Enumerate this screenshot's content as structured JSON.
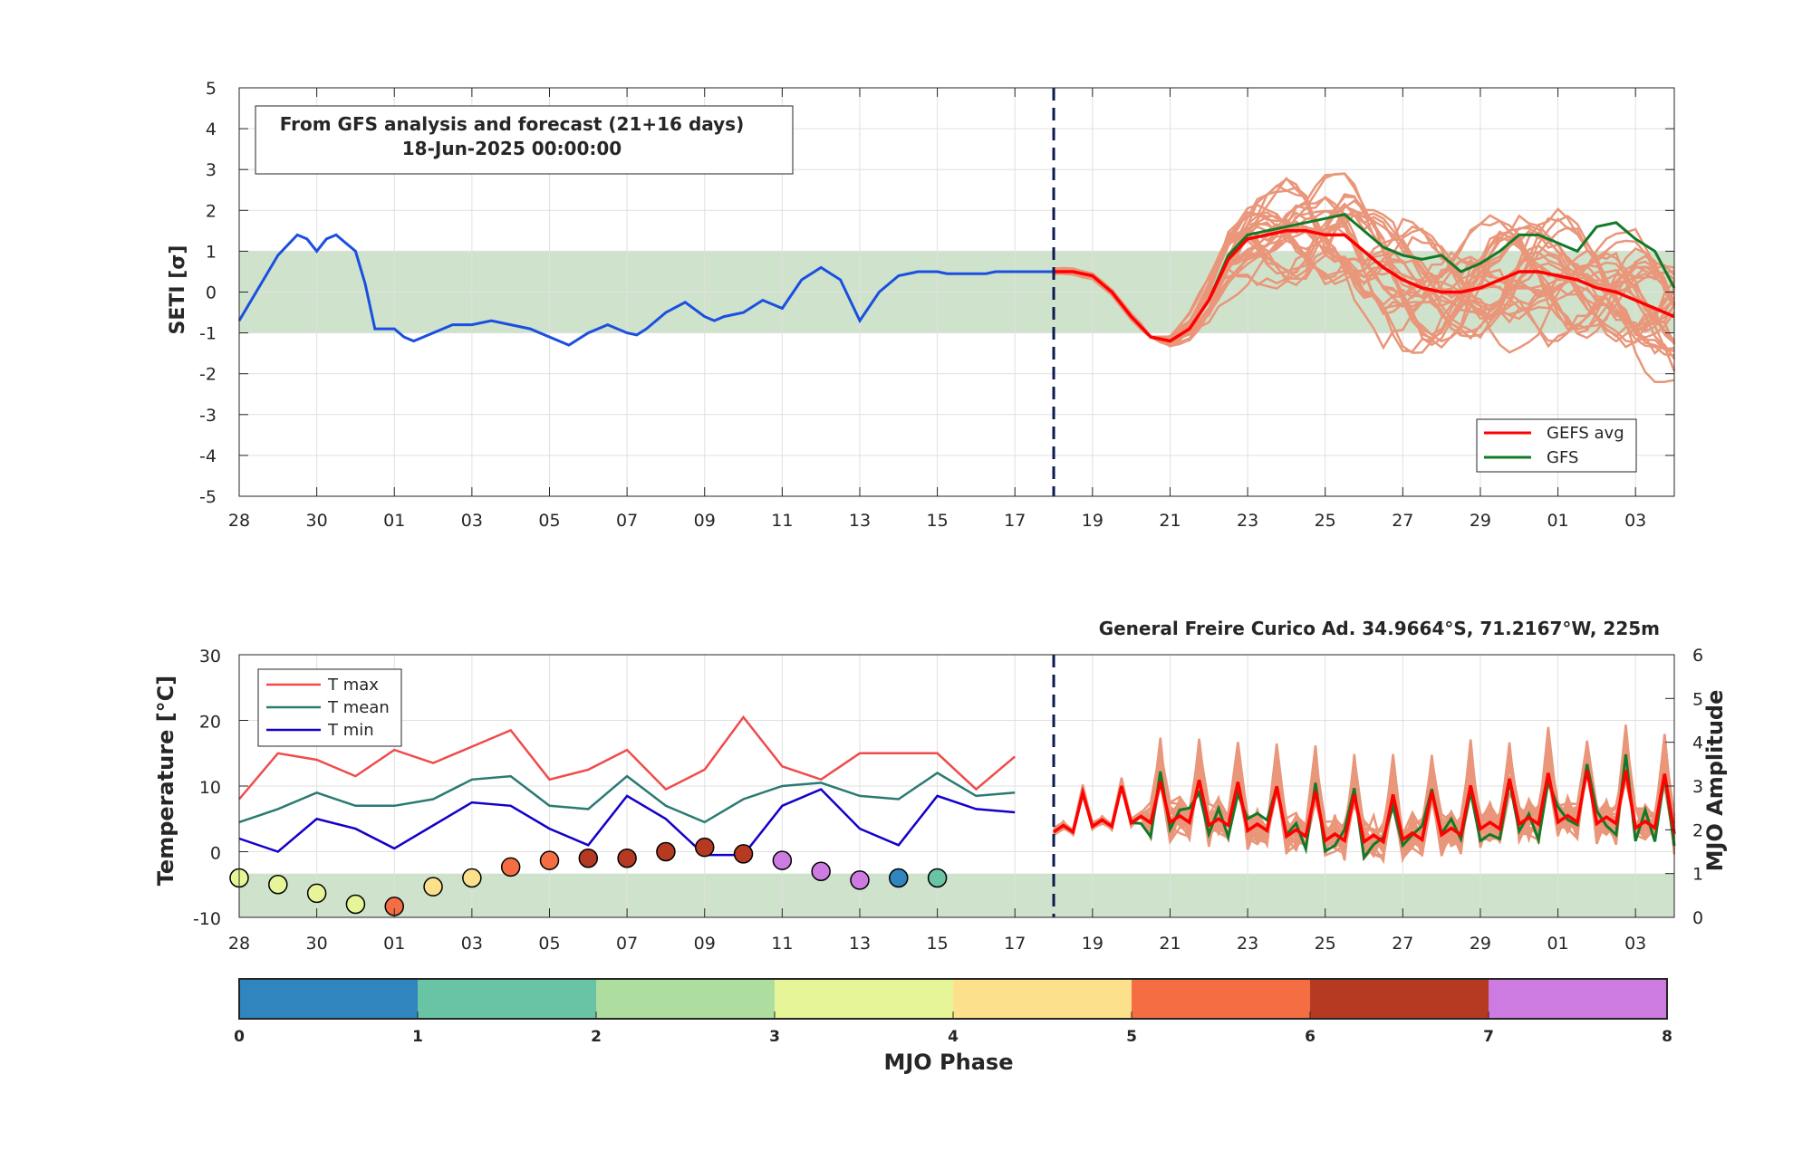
{
  "colors": {
    "seti_obs": "#1a4fe0",
    "gefs_avg": "#ff0000",
    "gfs": "#127a27",
    "ens": "#e9967a",
    "band": "#cfe3cc",
    "t_max": "#f04b4b",
    "t_mean": "#2a7a72",
    "t_min": "#1400c8",
    "forecast_line": "#0c1a4f"
  },
  "chart_data": [
    {
      "type": "line",
      "ylabel": "SETI [σ]",
      "ylim": [
        -5,
        5
      ],
      "y_ticks": [
        "5",
        "4",
        "3",
        "2",
        "1",
        "0",
        "-1",
        "-2",
        "-3",
        "-4",
        "-5"
      ],
      "x_range_days": [
        0,
        37
      ],
      "x_tick_labels": [
        "28",
        "30",
        "01",
        "03",
        "05",
        "07",
        "09",
        "11",
        "13",
        "15",
        "17",
        "19",
        "21",
        "23",
        "25",
        "27",
        "29",
        "01",
        "03"
      ],
      "x_tick_days": [
        0,
        2,
        4,
        6,
        8,
        10,
        12,
        14,
        16,
        18,
        20,
        22,
        24,
        26,
        28,
        30,
        32,
        34,
        36
      ],
      "forecast_start_day": 21,
      "neutral_band": [
        -1,
        1
      ],
      "info_box": {
        "line1": "From GFS analysis and forecast (21+16 days)",
        "line2": "18-Jun-2025 00:00:00"
      },
      "legend": {
        "placement": "lower-right",
        "entries": [
          "GEFS avg",
          "GFS"
        ]
      },
      "series": [
        {
          "name": "SETI analysis",
          "x": [
            0,
            0.5,
            1,
            1.5,
            1.75,
            2,
            2.25,
            2.5,
            3,
            3.25,
            3.5,
            4,
            4.25,
            4.5,
            4.75,
            5,
            5.25,
            5.5,
            6,
            6.5,
            7,
            7.5,
            8,
            8.5,
            9,
            9.5,
            10,
            10.25,
            10.5,
            10.75,
            11,
            11.5,
            12,
            12.25,
            12.5,
            13,
            13.5,
            14,
            14.5,
            15,
            15.5,
            16,
            16.5,
            17,
            17.5,
            18,
            18.25,
            18.5,
            18.75,
            19,
            19.25,
            19.5,
            20,
            20.5,
            21
          ],
          "y": [
            -0.7,
            0.1,
            0.9,
            1.4,
            1.3,
            1.0,
            1.3,
            1.4,
            1.0,
            0.2,
            -0.9,
            -0.9,
            -1.1,
            -1.2,
            -1.1,
            -1.0,
            -0.9,
            -0.8,
            -0.8,
            -0.7,
            -0.8,
            -0.9,
            -1.1,
            -1.3,
            -1.0,
            -0.8,
            -1.0,
            -1.05,
            -0.9,
            -0.7,
            -0.5,
            -0.25,
            -0.6,
            -0.7,
            -0.6,
            -0.5,
            -0.2,
            -0.4,
            0.3,
            0.6,
            0.3,
            -0.7,
            0.0,
            0.4,
            0.5,
            0.5,
            0.45,
            0.45,
            0.45,
            0.45,
            0.45,
            0.5,
            0.5,
            0.5,
            0.5
          ]
        },
        {
          "name": "GEFS avg",
          "x": [
            21,
            21.5,
            22,
            22.5,
            23,
            23.5,
            24,
            24.5,
            25,
            25.5,
            26,
            26.5,
            27,
            27.5,
            28,
            28.5,
            29,
            29.5,
            30,
            30.5,
            31,
            31.5,
            32,
            32.5,
            33,
            33.5,
            34,
            34.5,
            35,
            35.5,
            36,
            36.5,
            37
          ],
          "y": [
            0.5,
            0.5,
            0.4,
            0.0,
            -0.6,
            -1.1,
            -1.2,
            -0.9,
            -0.2,
            0.8,
            1.3,
            1.4,
            1.5,
            1.5,
            1.4,
            1.4,
            1.0,
            0.6,
            0.3,
            0.1,
            0.0,
            0.0,
            0.1,
            0.3,
            0.5,
            0.5,
            0.4,
            0.3,
            0.1,
            0.0,
            -0.2,
            -0.4,
            -0.6
          ]
        },
        {
          "name": "GFS",
          "x": [
            21,
            21.5,
            22,
            22.5,
            23,
            23.5,
            24,
            24.5,
            25,
            25.5,
            26,
            26.5,
            27,
            27.5,
            28,
            28.5,
            29,
            29.5,
            30,
            30.5,
            31,
            31.5,
            32,
            32.5,
            33,
            33.5,
            34,
            34.5,
            35,
            35.5,
            36,
            36.5,
            37
          ],
          "y": [
            0.5,
            0.5,
            0.4,
            0.0,
            -0.6,
            -1.1,
            -1.2,
            -0.9,
            -0.2,
            0.9,
            1.4,
            1.5,
            1.6,
            1.7,
            1.8,
            1.9,
            1.5,
            1.1,
            0.9,
            0.8,
            0.9,
            0.5,
            0.7,
            1.0,
            1.4,
            1.4,
            1.2,
            1.0,
            1.6,
            1.7,
            1.3,
            1.0,
            0.1
          ]
        }
      ]
    },
    {
      "type": "line",
      "title": "General Freire Curico Ad. 34.9664°S, 71.2167°W, 225m",
      "ylabel": "Temperature [°C]",
      "ylim": [
        -10,
        30
      ],
      "y_ticks": [
        "30",
        "20",
        "10",
        "0",
        "-10"
      ],
      "y2label": "MJO Amplitude",
      "y2lim": [
        0,
        6
      ],
      "y2_ticks": [
        "6",
        "5",
        "4",
        "3",
        "2",
        "1",
        "0"
      ],
      "x_range_days": [
        0,
        37
      ],
      "x_tick_labels": [
        "28",
        "30",
        "01",
        "03",
        "05",
        "07",
        "09",
        "11",
        "13",
        "15",
        "17",
        "19",
        "21",
        "23",
        "25",
        "27",
        "29",
        "01",
        "03"
      ],
      "x_tick_days": [
        0,
        2,
        4,
        6,
        8,
        10,
        12,
        14,
        16,
        18,
        20,
        22,
        24,
        26,
        28,
        30,
        32,
        34,
        36
      ],
      "forecast_start_day": 21,
      "amplitude_band": [
        0,
        1
      ],
      "legend": {
        "placement": "top-left",
        "entries": [
          "T max",
          "T mean",
          "T min"
        ]
      },
      "series": [
        {
          "name": "T max",
          "x": [
            0,
            1,
            2,
            3,
            4,
            5,
            6,
            7,
            8,
            9,
            10,
            11,
            12,
            13,
            14,
            15,
            16,
            17,
            18,
            19,
            20
          ],
          "y": [
            8,
            15,
            14,
            11.5,
            15.5,
            13.5,
            16,
            18.5,
            11,
            12.5,
            15.5,
            9.5,
            12.5,
            20.5,
            13,
            11,
            15,
            15,
            15,
            9.5,
            14.5
          ]
        },
        {
          "name": "T mean",
          "x": [
            0,
            1,
            2,
            3,
            4,
            5,
            6,
            7,
            8,
            9,
            10,
            11,
            12,
            13,
            14,
            15,
            16,
            17,
            18,
            19,
            20
          ],
          "y": [
            4.5,
            6.5,
            9,
            7,
            7,
            8,
            11,
            11.5,
            7,
            6.5,
            11.5,
            7,
            4.5,
            8,
            10,
            10.5,
            8.5,
            8,
            12,
            8.5,
            9
          ]
        },
        {
          "name": "T min",
          "x": [
            0,
            1,
            2,
            3,
            4,
            5,
            6,
            7,
            8,
            9,
            10,
            11,
            12,
            13,
            14,
            15,
            16,
            17,
            18,
            19,
            20
          ],
          "y": [
            2,
            0,
            5,
            3.5,
            0.5,
            4,
            7.5,
            7,
            3.5,
            1,
            8.5,
            5,
            -0.5,
            -0.5,
            7,
            9.5,
            3.5,
            1,
            8.5,
            6.5,
            6
          ]
        },
        {
          "name": "MJO phase points",
          "x": [
            0,
            1,
            2,
            3,
            4,
            5,
            6,
            7,
            8,
            9,
            10,
            11,
            12,
            13,
            14,
            15,
            16,
            17,
            18
          ],
          "amplitude": [
            0.9,
            0.75,
            0.55,
            0.3,
            0.25,
            0.7,
            0.9,
            1.15,
            1.3,
            1.35,
            1.35,
            1.5,
            1.6,
            1.45,
            1.3,
            1.05,
            0.85,
            0.9,
            0.9
          ],
          "phase": [
            3.6,
            3.4,
            3.3,
            3.2,
            5.1,
            4.6,
            4.7,
            5.4,
            5.6,
            6.4,
            6.2,
            6.5,
            6.7,
            6.3,
            7.3,
            7.4,
            7.2,
            0.4,
            1.5
          ]
        }
      ]
    },
    {
      "type": "colorbar",
      "xlabel": "MJO Phase",
      "tick_labels": [
        "0",
        "1",
        "2",
        "3",
        "4",
        "5",
        "6",
        "7",
        "8"
      ],
      "segment_colors": [
        "#3085bf",
        "#69c4a5",
        "#aede9f",
        "#e6f598",
        "#fde08b",
        "#f46d43",
        "#b53a21",
        "#cd7be0"
      ]
    }
  ]
}
